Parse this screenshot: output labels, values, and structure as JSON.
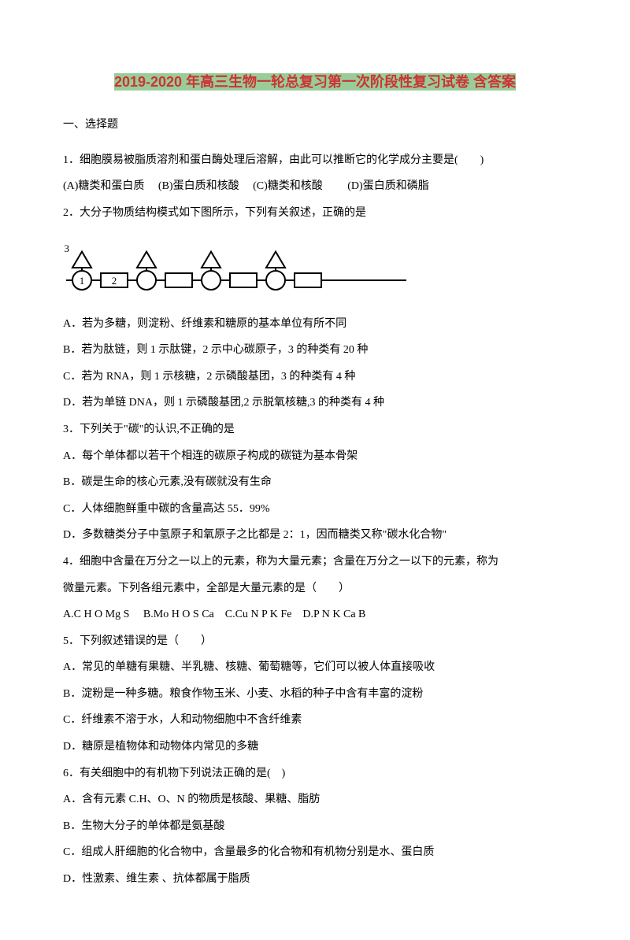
{
  "title_hl": "2019-2020 年高三生物一轮总复习第一次阶段性复习试卷 含答案",
  "section1": "一、选择题",
  "q1_stem": "1．细胞膜易被脂质溶剂和蛋白酶处理后溶解，由此可以推断它的化学成分主要是(　　)",
  "q1_opts": "(A)糖类和蛋白质　 (B)蛋白质和核酸　 (C)糖类和核酸　　 (D)蛋白质和磷脂",
  "q2_stem": "2．大分子物质结构模式如下图所示，下列有关叙述，正确的是",
  "q2_a": "A．若为多糖，则淀粉、纤维素和糖原的基本单位有所不同",
  "q2_b": "B．若为肽链，则 1 示肽键，2 示中心碳原子，3 的种类有 20 种",
  "q2_c": "C．若为 RNA，则 1 示核糖，2 示磷酸基团，3 的种类有 4 种",
  "q2_d": "D．若为单链 DNA，则 1 示磷酸基团,2 示脱氧核糖,3 的种类有 4 种",
  "q3_stem": "3．下列关于\"碳\"的认识,不正确的是",
  "q3_a": "A．每个单体都以若干个相连的碳原子构成的碳链为基本骨架",
  "q3_b": "B．碳是生命的核心元素,没有碳就没有生命",
  "q3_c": "C．人体细胞鲜重中碳的含量高达 55．99%",
  "q3_d": "D．多数糖类分子中氢原子和氧原子之比都是 2：1，因而糖类又称\"碳水化合物\"",
  "q4_stem1": "4．细胞中含量在万分之一以上的元素，称为大量元素；含量在万分之一以下的元素，称为",
  "q4_stem2": "微量元素。下列各组元素中，全部是大量元素的是（　　）",
  "q4_opts": "A.C H O Mg S　 B.Mo H O S Ca　C.Cu N P K Fe　D.P N K Ca B",
  "q5_stem": "5．下列叙述错误的是（　　）",
  "q5_a": "A．常见的单糖有果糖、半乳糖、核糖、葡萄糖等，它们可以被人体直接吸收",
  "q5_b": "B．淀粉是一种多糖。粮食作物玉米、小麦、水稻的种子中含有丰富的淀粉",
  "q5_c": "C．纤维素不溶于水，人和动物细胞中不含纤维素",
  "q5_d": "D．糖原是植物体和动物体内常见的多糖",
  "q6_stem": "6．有关细胞中的有机物下列说法正确的是(　)",
  "q6_a": "A．含有元素 C.H、O、N 的物质是核酸、果糖、脂肪",
  "q6_b": "B．生物大分子的单体都是氨基酸",
  "q6_c": "C．组成人肝细胞的化合物中，含量最多的化合物和有机物分别是水、蛋白质",
  "q6_d": "D．性激素、维生素 、抗体都属于脂质",
  "diagram": {
    "stroke": "#000000",
    "stroke_width": 2,
    "bg": "#ffffff",
    "circle_r": 12,
    "rect_w": 34,
    "rect_h": 18,
    "tri_side": 24,
    "label1": "1",
    "label2": "2",
    "label3": "3"
  }
}
